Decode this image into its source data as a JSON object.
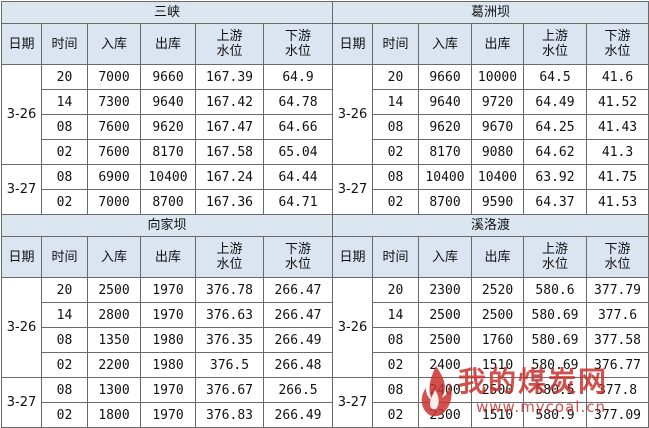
{
  "headers": {
    "date": "日期",
    "time": "时间",
    "inflow": "入库",
    "outflow": "出库",
    "upstream_l1": "上游",
    "upstream_l2": "水位",
    "downstream_l1": "下游",
    "downstream_l2": "水位"
  },
  "panels": [
    {
      "title": "三峡",
      "groups": [
        {
          "date": "3-26",
          "rows": [
            [
              "20",
              "7000",
              "9660",
              "167.39",
              "64.9"
            ],
            [
              "14",
              "7300",
              "9640",
              "167.42",
              "64.78"
            ],
            [
              "08",
              "7600",
              "9620",
              "167.47",
              "64.66"
            ],
            [
              "02",
              "7600",
              "8170",
              "167.58",
              "65.04"
            ]
          ]
        },
        {
          "date": "3-27",
          "rows": [
            [
              "08",
              "6900",
              "10400",
              "167.24",
              "64.44"
            ],
            [
              "02",
              "7000",
              "8700",
              "167.36",
              "64.71"
            ]
          ]
        }
      ]
    },
    {
      "title": "葛洲坝",
      "groups": [
        {
          "date": "3-26",
          "rows": [
            [
              "20",
              "9660",
              "10000",
              "64.5",
              "41.6"
            ],
            [
              "14",
              "9640",
              "9720",
              "64.49",
              "41.52"
            ],
            [
              "08",
              "9620",
              "9670",
              "64.25",
              "41.43"
            ],
            [
              "02",
              "8170",
              "9080",
              "64.62",
              "41.3"
            ]
          ]
        },
        {
          "date": "3-27",
          "rows": [
            [
              "08",
              "10400",
              "10400",
              "63.92",
              "41.75"
            ],
            [
              "02",
              "8700",
              "9590",
              "64.37",
              "41.53"
            ]
          ]
        }
      ]
    },
    {
      "title": "向家坝",
      "groups": [
        {
          "date": "3-26",
          "rows": [
            [
              "20",
              "2500",
              "1970",
              "376.78",
              "266.47"
            ],
            [
              "14",
              "2800",
              "1970",
              "376.63",
              "266.47"
            ],
            [
              "08",
              "1350",
              "1980",
              "376.35",
              "266.49"
            ],
            [
              "02",
              "2200",
              "1980",
              "376.5",
              "266.48"
            ]
          ]
        },
        {
          "date": "3-27",
          "rows": [
            [
              "08",
              "1300",
              "1970",
              "376.67",
              "266.5"
            ],
            [
              "02",
              "1800",
              "1970",
              "376.83",
              "266.49"
            ]
          ]
        }
      ]
    },
    {
      "title": "溪洛渡",
      "groups": [
        {
          "date": "3-26",
          "rows": [
            [
              "20",
              "2300",
              "2520",
              "580.6",
              "377.79"
            ],
            [
              "14",
              "2500",
              "2500",
              "580.69",
              "377.6"
            ],
            [
              "08",
              "2500",
              "1760",
              "580.69",
              "377.58"
            ],
            [
              "02",
              "2400",
              "1510",
              "580.69",
              "376.77"
            ]
          ]
        },
        {
          "date": "3-27",
          "rows": [
            [
              "08",
              "2400",
              "2500",
              "580.5",
              "377.8"
            ],
            [
              "02",
              "2300",
              "1510",
              "580.9",
              "377.09"
            ]
          ]
        }
      ]
    }
  ],
  "watermark": {
    "text": "我的煤炭网",
    "url": "www.mycoal.cn"
  }
}
